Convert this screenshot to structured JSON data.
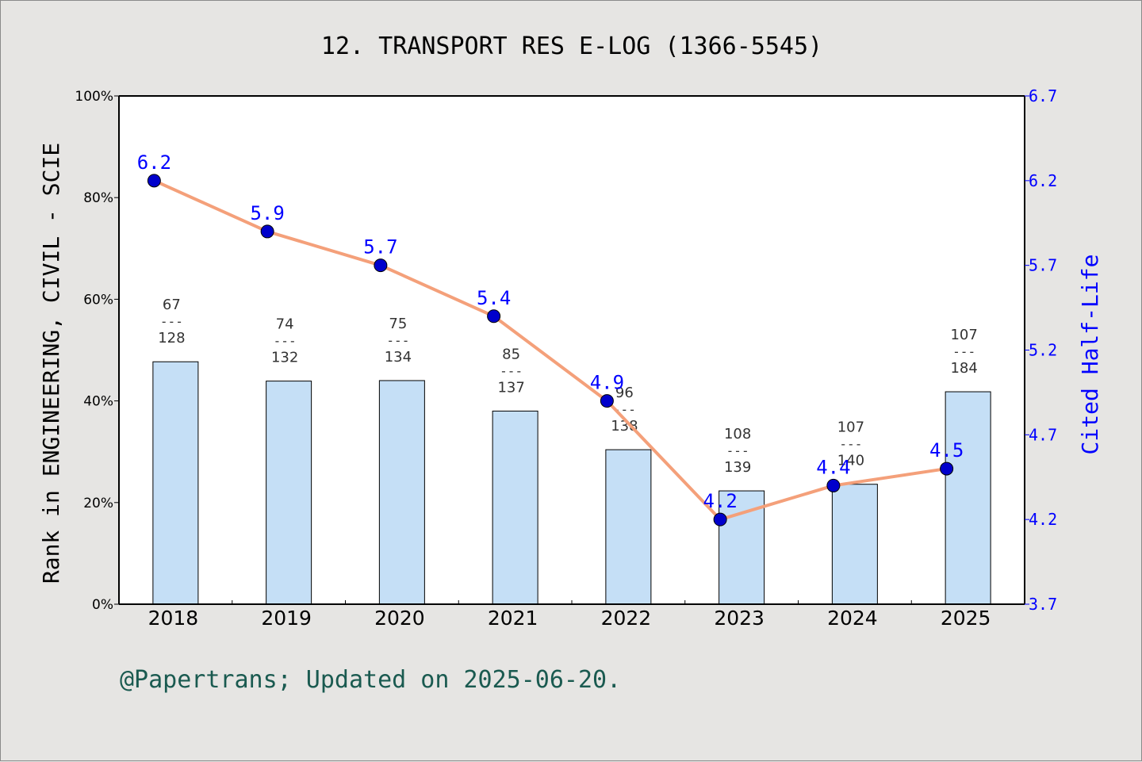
{
  "chart_data": {
    "type": "bar",
    "title": "12. TRANSPORT RES E-LOG (1366-5545)",
    "categories": [
      "2018",
      "2019",
      "2020",
      "2021",
      "2022",
      "2023",
      "2024",
      "2025"
    ],
    "ylabel": "Rank in ENGINEERING, CIVIL - SCIE",
    "y2label": "Cited Half-Life",
    "ylim": [
      0,
      100
    ],
    "y2lim": [
      3.7,
      6.7
    ],
    "yticks": [
      "0%",
      "20%",
      "40%",
      "60%",
      "80%",
      "100%"
    ],
    "y2ticks": [
      "3.7",
      "4.2",
      "4.7",
      "5.2",
      "5.7",
      "6.2",
      "6.7"
    ],
    "rank_fractions": [
      {
        "rank": "67",
        "total": "128"
      },
      {
        "rank": "74",
        "total": "132"
      },
      {
        "rank": "75",
        "total": "134"
      },
      {
        "rank": "85",
        "total": "137"
      },
      {
        "rank": "96",
        "total": "138"
      },
      {
        "rank": "108",
        "total": "139"
      },
      {
        "rank": "107",
        "total": "140"
      },
      {
        "rank": "107",
        "total": "184"
      }
    ],
    "bar_values": [
      47.7,
      43.9,
      44.0,
      38.0,
      30.4,
      22.3,
      23.6,
      41.8
    ],
    "series": [
      {
        "name": "Cited Half-Life",
        "values": [
          6.2,
          5.9,
          5.7,
          5.4,
          4.9,
          4.2,
          4.4,
          4.5
        ],
        "labels": [
          "6.2",
          "5.9",
          "5.7",
          "5.4",
          "4.9",
          "4.2",
          "4.4",
          "4.5"
        ]
      }
    ],
    "grid": false,
    "colors": {
      "bar_fill": "#c5dff6",
      "line": "#f4a07a",
      "point": "#0000cc",
      "y2_axis": "#0000ff",
      "footer": "#1a5a50"
    }
  },
  "footer": "@Papertrans; Updated on 2025-06-20."
}
